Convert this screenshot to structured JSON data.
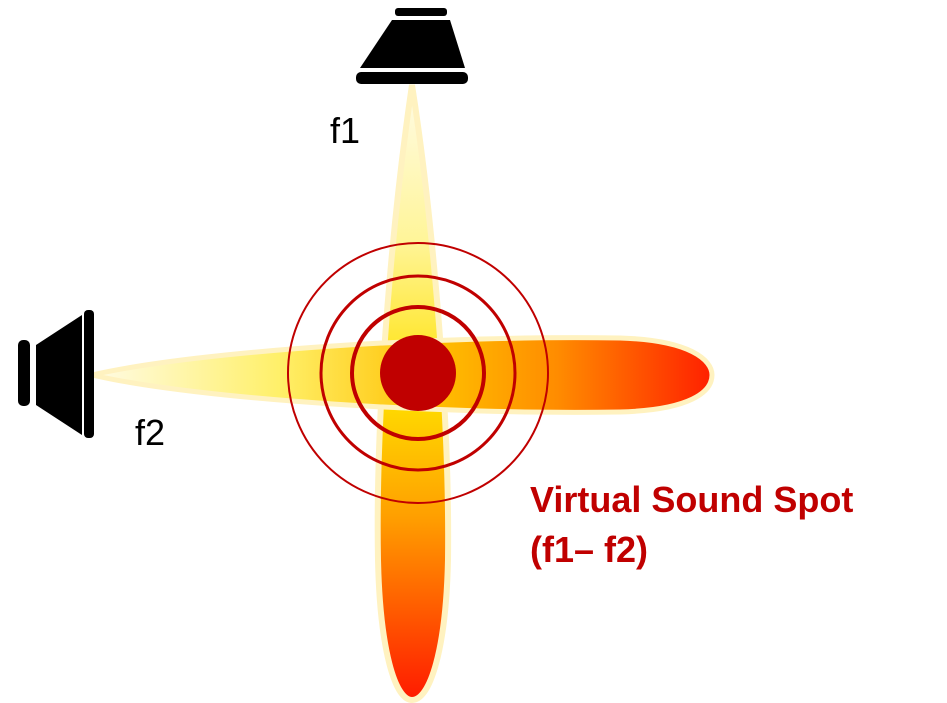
{
  "speakers": [
    {
      "label": "f1"
    },
    {
      "label": "f2"
    }
  ],
  "spot": {
    "title": "Virtual Sound Spot",
    "formula": "(f1– f2)"
  }
}
